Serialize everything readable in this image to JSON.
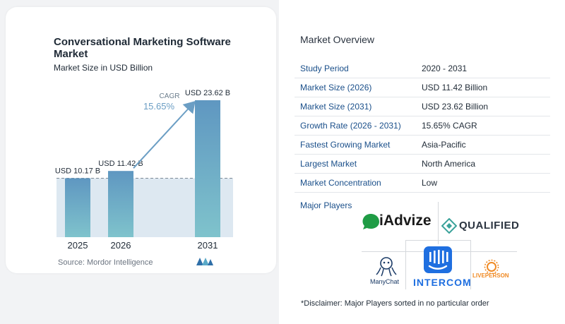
{
  "chart_data": {
    "type": "bar",
    "title": "Conversational Marketing Software Market",
    "subtitle": "Market Size in USD Billion",
    "categories": [
      "2025",
      "2026",
      "2031"
    ],
    "values": [
      10.17,
      11.42,
      23.62
    ],
    "data_labels": [
      "USD 10.17 B",
      "USD 11.42 B",
      "USD 23.62 B"
    ],
    "cagr_label": "CAGR",
    "cagr_value": "15.65%",
    "colors": {
      "bar_top": "#5f97c1",
      "bar_bottom": "#7fc3cc",
      "band": "#dde8f1",
      "arrow": "#6b9ec4"
    },
    "grid": false
  },
  "source": {
    "label": "Source:",
    "value": "Mordor Intelligence"
  },
  "overview": {
    "title": "Market Overview",
    "rows": [
      {
        "key": "Study Period",
        "value": "2020 - 2031"
      },
      {
        "key": "Market Size (2026)",
        "value": "USD 11.42 Billion"
      },
      {
        "key": "Market Size (2031)",
        "value": "USD 23.62 Billion"
      },
      {
        "key": "Growth Rate (2026 - 2031)",
        "value": "15.65% CAGR"
      },
      {
        "key": "Fastest Growing Market",
        "value": "Asia-Pacific"
      },
      {
        "key": "Largest Market",
        "value": "North America"
      },
      {
        "key": "Market Concentration",
        "value": "Low"
      }
    ]
  },
  "players": {
    "title": "Major Players",
    "logos": {
      "iadvize": "iAdvize",
      "qualified": "QUALIFIED",
      "manychat": "ManyChat",
      "intercom": "INTERCOM",
      "liveperson": "LIVEPERSON"
    }
  },
  "disclaimer": "*Disclaimer: Major Players sorted in no particular order"
}
